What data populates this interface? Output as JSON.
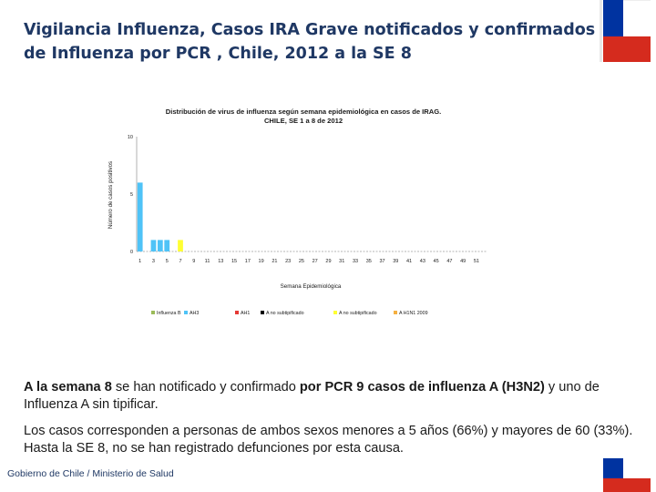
{
  "slide": {
    "title": "Vigilancia Influenza, Casos IRA Grave  notificados y confirmados de Influenza por PCR , Chile, 2012 a la SE 8"
  },
  "chart_data": {
    "type": "bar",
    "title": "Distribución de virus de influenza según semana epidemiológica en casos de IRAG.",
    "subtitle": "CHILE, SE 1 a 8 de 2012",
    "xlabel": "Semana Epidemiológica",
    "ylabel": "Número de casos positivos",
    "ylim": [
      0,
      10
    ],
    "y_ticks": [
      0,
      5,
      10
    ],
    "x_tick_labels": [
      "1",
      "3",
      "5",
      "7",
      "9",
      "11",
      "13",
      "15",
      "17",
      "19",
      "21",
      "23",
      "25",
      "27",
      "29",
      "31",
      "33",
      "35",
      "37",
      "39",
      "41",
      "43",
      "45",
      "47",
      "49",
      "51"
    ],
    "categories": [
      1,
      2,
      3,
      4,
      5,
      6,
      7,
      8
    ],
    "series": [
      {
        "name": "Influenza B",
        "color": "#9bbb59",
        "values": [
          0,
          0,
          0,
          0,
          0,
          0,
          0,
          0
        ]
      },
      {
        "name": "AH3",
        "color": "#4fc3f7",
        "values": [
          6,
          0,
          1,
          1,
          1,
          0,
          0,
          0
        ]
      },
      {
        "name": "AH1",
        "color": "#e53935",
        "values": [
          0,
          0,
          0,
          0,
          0,
          0,
          0,
          0
        ]
      },
      {
        "name": "A no subtipificado",
        "color": "#000000",
        "values": [
          0,
          0,
          0,
          0,
          0,
          0,
          0,
          0
        ]
      },
      {
        "name": "A no subtipificado",
        "color": "#ffff33",
        "values": [
          0,
          0,
          0,
          0,
          0,
          0,
          1,
          0
        ]
      },
      {
        "name": "A H1N1 2009",
        "color": "#f5b041",
        "values": [
          0,
          0,
          0,
          0,
          0,
          0,
          0,
          0
        ]
      }
    ],
    "legend_position": "bottom",
    "grid": false
  },
  "text": {
    "p1_a": "A la semana 8",
    "p1_b": " se han notificado y confirmado ",
    "p1_c": "por PCR  9 casos de influenza A (H3N2)",
    "p1_d": " y uno de Influenza A sin tipificar.",
    "p2": "Los casos corresponden a personas de ambos sexos menores a 5 años (66%) y mayores de 60 (33%).  Hasta la SE 8, no se han registrado defunciones por esta causa."
  },
  "footer": {
    "text": "Gobierno de Chile / Ministerio de Salud"
  }
}
